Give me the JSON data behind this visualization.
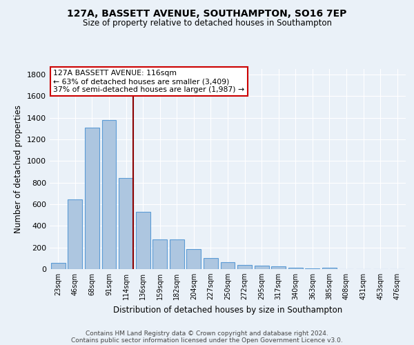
{
  "title": "127A, BASSETT AVENUE, SOUTHAMPTON, SO16 7EP",
  "subtitle": "Size of property relative to detached houses in Southampton",
  "xlabel": "Distribution of detached houses by size in Southampton",
  "ylabel": "Number of detached properties",
  "categories": [
    "23sqm",
    "46sqm",
    "68sqm",
    "91sqm",
    "114sqm",
    "136sqm",
    "159sqm",
    "182sqm",
    "204sqm",
    "227sqm",
    "250sqm",
    "272sqm",
    "295sqm",
    "317sqm",
    "340sqm",
    "363sqm",
    "385sqm",
    "408sqm",
    "431sqm",
    "453sqm",
    "476sqm"
  ],
  "values": [
    55,
    645,
    1310,
    1375,
    845,
    530,
    275,
    275,
    185,
    105,
    65,
    40,
    35,
    25,
    12,
    8,
    12,
    0,
    0,
    0,
    0
  ],
  "bar_color": "#adc6e0",
  "bar_edge_color": "#5b9bd5",
  "background_color": "#eaf1f8",
  "grid_color": "#ffffff",
  "vline_x_index": 4,
  "vline_color": "#8b0000",
  "annotation_line1": "127A BASSETT AVENUE: 116sqm",
  "annotation_line2": "← 63% of detached houses are smaller (3,409)",
  "annotation_line3": "37% of semi-detached houses are larger (1,987) →",
  "annotation_box_color": "#ffffff",
  "annotation_box_edge_color": "#cc0000",
  "ylim": [
    0,
    1850
  ],
  "yticks": [
    0,
    200,
    400,
    600,
    800,
    1000,
    1200,
    1400,
    1600,
    1800
  ],
  "footer_line1": "Contains HM Land Registry data © Crown copyright and database right 2024.",
  "footer_line2": "Contains public sector information licensed under the Open Government Licence v3.0."
}
